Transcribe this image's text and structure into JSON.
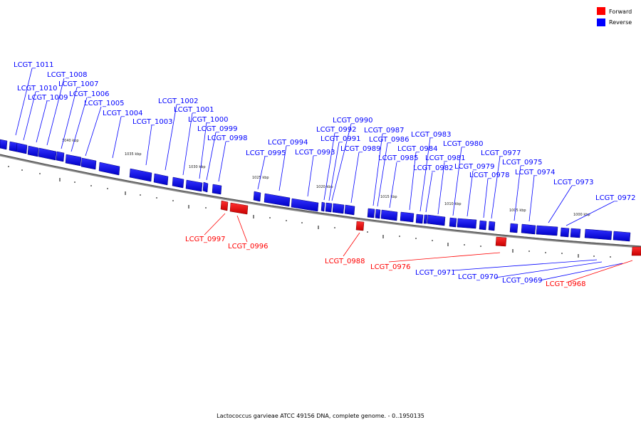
{
  "legend": {
    "forward_label": "Forward",
    "reverse_label": "Reverse",
    "forward_color": "#ff0000",
    "reverse_color": "#0000ff"
  },
  "caption": "Lactococcus garvieae ATCC 49156 DNA, complete genome. - 0..1950135",
  "ticks": [
    "1040 kbp",
    "1035 kbp",
    "1030 kbp",
    "1025 kbp",
    "1020 kbp",
    "1015 kbp",
    "1010 kbp",
    "1005 kbp",
    "1000 kbp"
  ],
  "genes": {
    "reverse": [
      "LCGT_1011",
      "LCGT_1010",
      "LCGT_1009",
      "LCGT_1008",
      "LCGT_1007",
      "LCGT_1006",
      "LCGT_1005",
      "LCGT_1004",
      "LCGT_1003",
      "LCGT_1002",
      "LCGT_1001",
      "LCGT_1000",
      "LCGT_0999",
      "LCGT_0998",
      "LCGT_0995",
      "LCGT_0994",
      "LCGT_0993",
      "LCGT_0992",
      "LCGT_0990",
      "LCGT_0991",
      "LCGT_0989",
      "LCGT_0987",
      "LCGT_0986",
      "LCGT_0985",
      "LCGT_0984",
      "LCGT_0983",
      "LCGT_0982",
      "LCGT_0981",
      "LCGT_0980",
      "LCGT_0979",
      "LCGT_0978",
      "LCGT_0977",
      "LCGT_0975",
      "LCGT_0974",
      "LCGT_0973",
      "LCGT_0972",
      "LCGT_0971",
      "LCGT_0970",
      "LCGT_0969"
    ],
    "forward": [
      "LCGT_0997",
      "LCGT_0996",
      "LCGT_0988",
      "LCGT_0976",
      "LCGT_0968"
    ]
  }
}
